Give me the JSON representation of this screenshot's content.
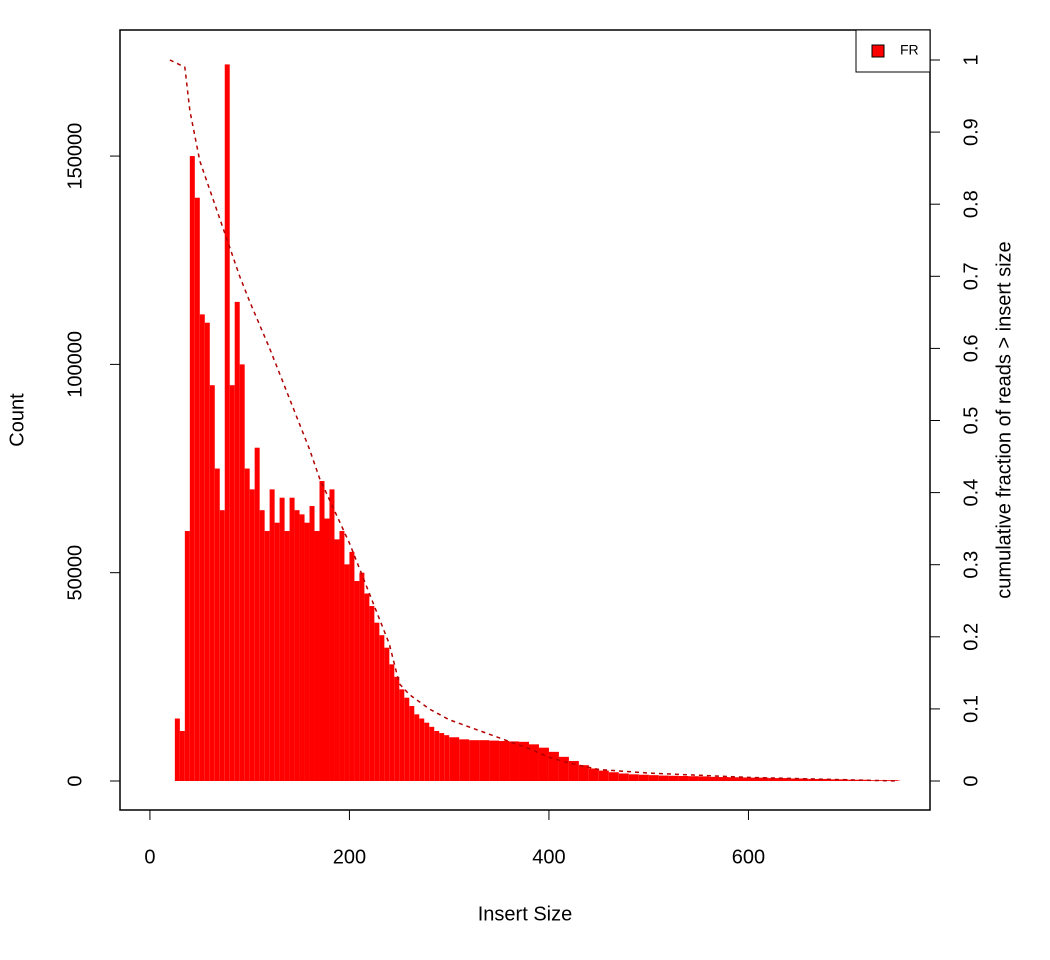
{
  "chart_data": {
    "type": "histogram-cumulative",
    "xlabel": "Insert Size",
    "ylabel": "Count",
    "y2label": "cumulative fraction of reads > insert size",
    "xlim": [
      -30,
      782
    ],
    "xticks": [
      0,
      200,
      400,
      600
    ],
    "ylim": [
      -6960,
      180260
    ],
    "yticks": [
      0,
      50000,
      100000,
      150000
    ],
    "y2lim": [
      -0.0402,
      1.0416
    ],
    "y2ticks": [
      0,
      0.1,
      0.2,
      0.3,
      0.4,
      0.5,
      0.6,
      0.7,
      0.8,
      0.9,
      1
    ],
    "legend_position": "top-right",
    "series": [
      {
        "name": "FR",
        "color": "#ff0000",
        "x": [
          20,
          25,
          30,
          35,
          40,
          45,
          50,
          55,
          60,
          65,
          70,
          75,
          80,
          85,
          90,
          95,
          100,
          105,
          110,
          115,
          120,
          125,
          130,
          135,
          140,
          145,
          150,
          155,
          160,
          165,
          170,
          175,
          180,
          185,
          190,
          195,
          200,
          205,
          210,
          215,
          220,
          225,
          230,
          235,
          240,
          245,
          250,
          255,
          260,
          265,
          270,
          275,
          280,
          285,
          290,
          295,
          300,
          310,
          320,
          330,
          340,
          350,
          360,
          370,
          380,
          390,
          400,
          410,
          420,
          430,
          440,
          450,
          460,
          470,
          480,
          490,
          500,
          510,
          520,
          530,
          540,
          550,
          560,
          570,
          580,
          590,
          600,
          620,
          640,
          660,
          680,
          700,
          720,
          750
        ],
        "values": [
          0,
          15000,
          12000,
          60000,
          150000,
          140000,
          112000,
          110000,
          95000,
          75000,
          65000,
          172000,
          95000,
          115000,
          100000,
          75000,
          70000,
          80000,
          65000,
          60000,
          70000,
          62000,
          68000,
          60000,
          68000,
          65000,
          64000,
          62000,
          66000,
          60000,
          72000,
          63000,
          70000,
          58000,
          60000,
          52000,
          55000,
          48000,
          50000,
          45000,
          42000,
          38000,
          35000,
          32000,
          28000,
          25000,
          22000,
          20000,
          18000,
          16000,
          15000,
          14000,
          13000,
          12000,
          11500,
          11000,
          10500,
          10000,
          9800,
          9800,
          9700,
          9600,
          9500,
          9400,
          8800,
          8000,
          7000,
          5800,
          4800,
          3800,
          3000,
          2500,
          2100,
          1800,
          1600,
          1500,
          1400,
          1300,
          1250,
          1200,
          1150,
          1100,
          1000,
          950,
          900,
          850,
          800,
          700,
          600,
          500,
          400,
          300,
          200,
          100
        ]
      },
      {
        "color": "#b00000",
        "axis": "y2",
        "dashed": true,
        "x": [
          20,
          35,
          40,
          50,
          60,
          70,
          80,
          90,
          100,
          120,
          140,
          160,
          170,
          180,
          200,
          220,
          240,
          250,
          260,
          280,
          300,
          320,
          340,
          360,
          380,
          400,
          420,
          450,
          500,
          600,
          750
        ],
        "values": [
          1,
          0.99,
          0.93,
          0.86,
          0.82,
          0.78,
          0.74,
          0.7,
          0.665,
          0.6,
          0.53,
          0.46,
          0.42,
          0.39,
          0.33,
          0.26,
          0.19,
          0.135,
          0.12,
          0.1,
          0.085,
          0.075,
          0.065,
          0.055,
          0.045,
          0.033,
          0.025,
          0.016,
          0.011,
          0.005,
          0
        ]
      }
    ]
  }
}
